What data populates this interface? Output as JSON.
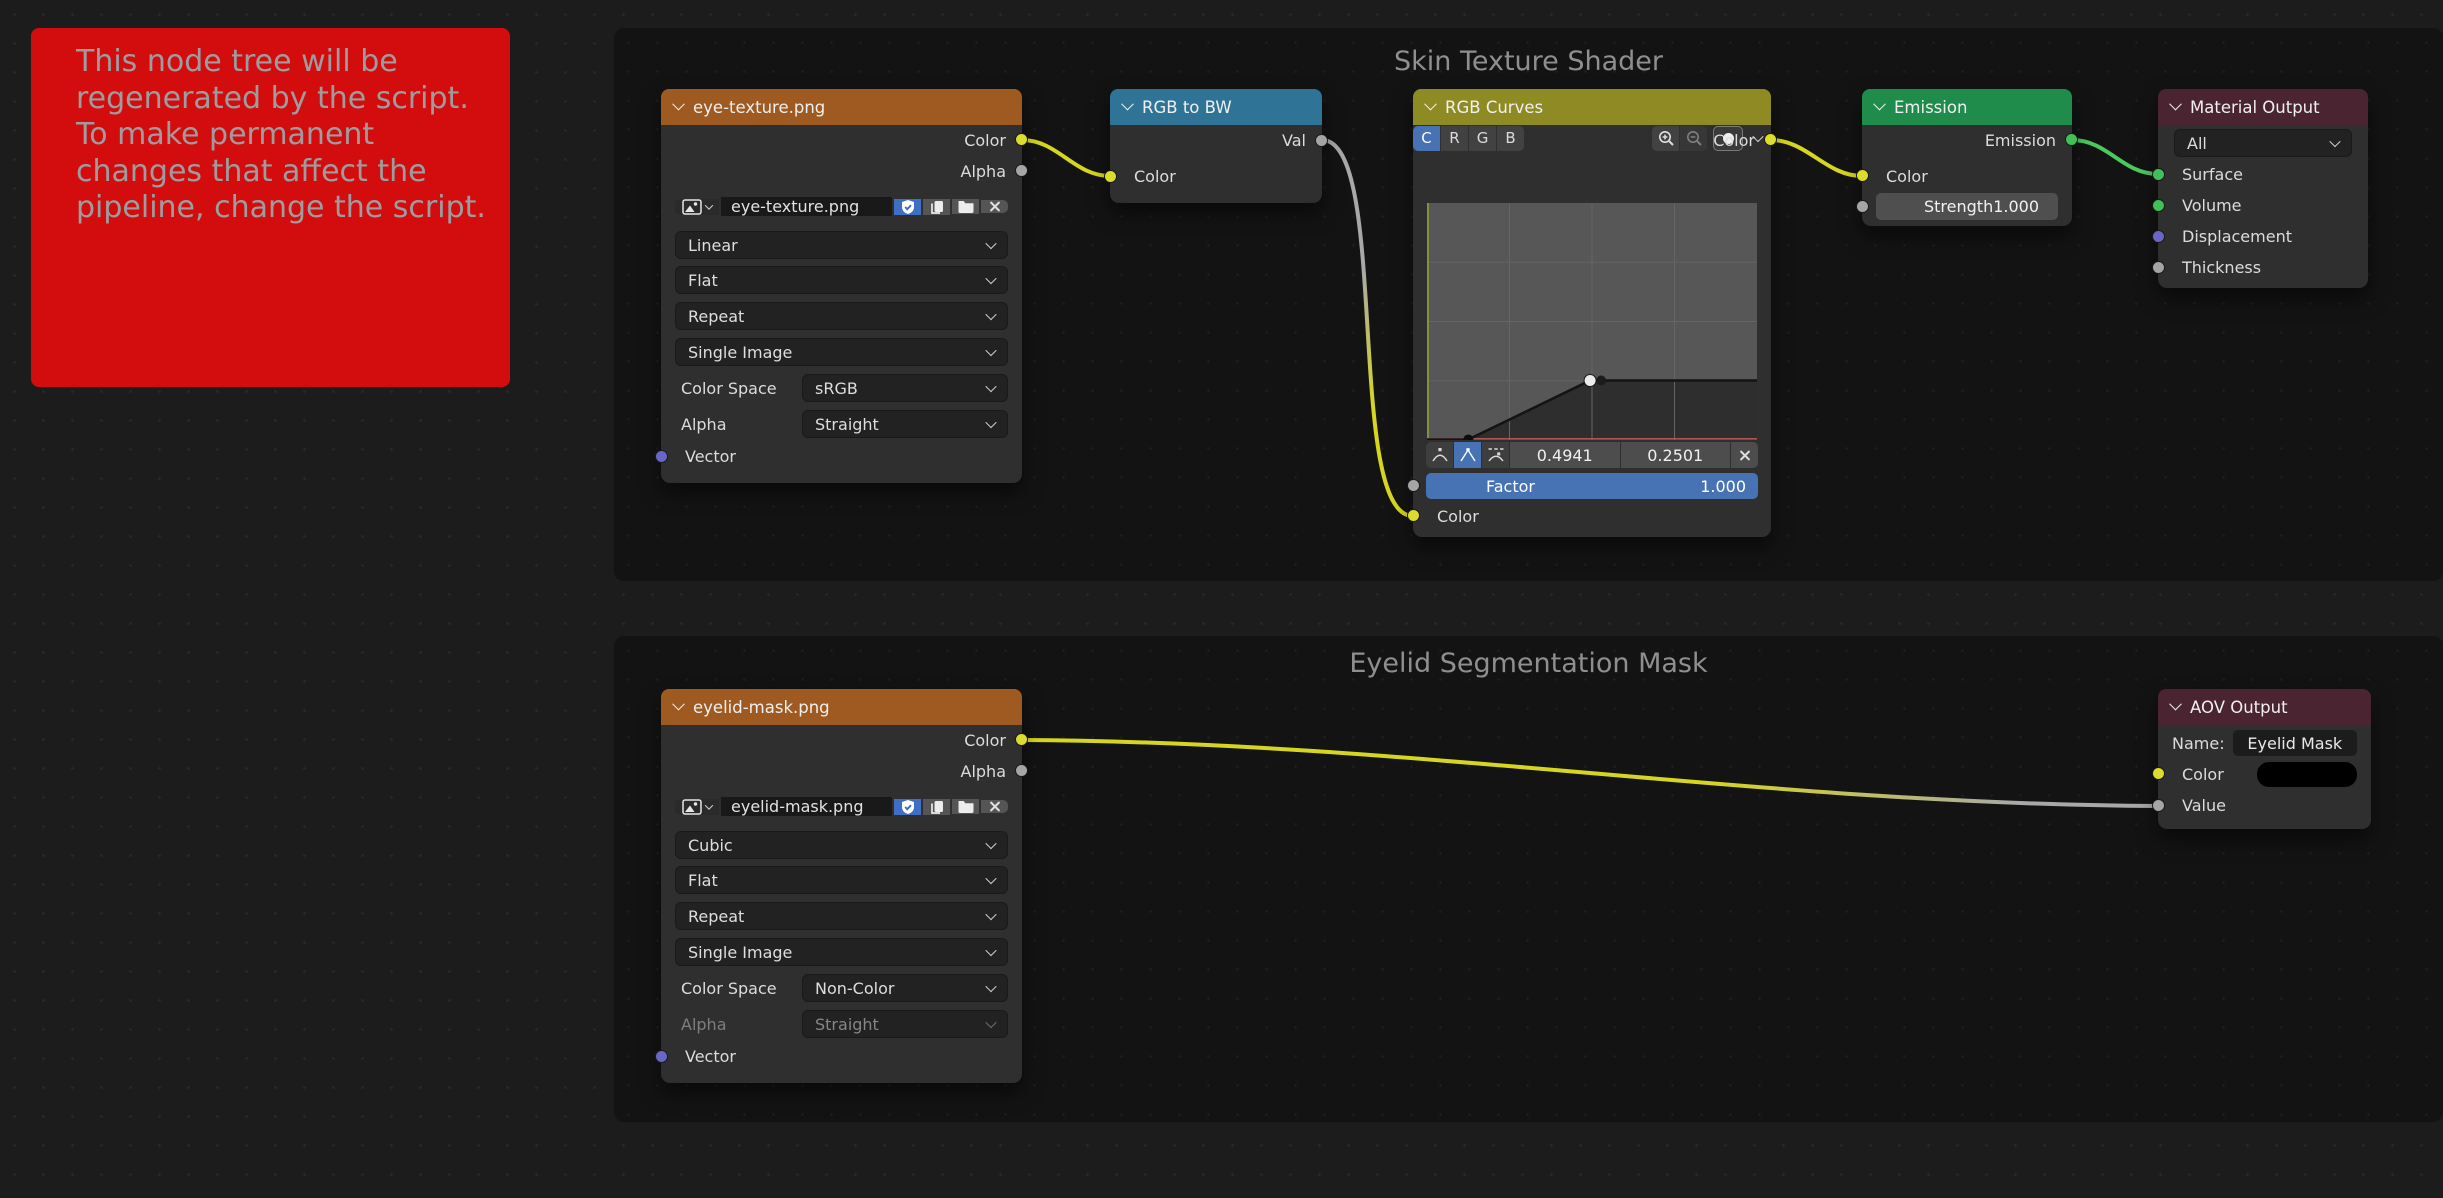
{
  "notice": {
    "lines": [
      "This node tree will be",
      "regenerated by the script.",
      "To make permanent",
      "changes that affect the",
      "pipeline, change the script."
    ]
  },
  "sections": {
    "skin": {
      "title": "Skin Texture Shader"
    },
    "eyelid": {
      "title": "Eyelid Segmentation Mask"
    }
  },
  "colors": {
    "notice_red": "#d30d0d",
    "header_texture": "#9e5a20",
    "header_converter": "#2f7396",
    "header_color_op": "#8f8b24",
    "header_shader": "#1f8c4c",
    "header_output": "#4a2531",
    "socket_color": "#dcdc2c",
    "socket_value": "#a5a5a5",
    "socket_shader": "#3fc157",
    "socket_vector": "#6a66c8",
    "selection_blue": "#4772b3"
  },
  "nodes": {
    "eye_texture": {
      "title": "eye-texture.png",
      "color_out": "Color",
      "alpha_out": "Alpha",
      "image_name": "eye-texture.png",
      "interpolation": "Linear",
      "projection": "Flat",
      "extension": "Repeat",
      "source": "Single Image",
      "color_space_label": "Color Space",
      "color_space": "sRGB",
      "alpha_label": "Alpha",
      "alpha_mode": "Straight",
      "vector_in": "Vector"
    },
    "rgb_to_bw": {
      "title": "RGB to BW",
      "val_out": "Val",
      "color_in": "Color"
    },
    "rgb_curves": {
      "title": "RGB Curves",
      "color_out": "Color",
      "channels": [
        "C",
        "R",
        "G",
        "B"
      ],
      "active_channel": "C",
      "x_value": "0.4941",
      "y_value": "0.2501",
      "factor_label": "Factor",
      "factor_value": "1.000",
      "color_in": "Color",
      "curve_points": [
        [
          0.125,
          0.0
        ],
        [
          0.4941,
          0.2501
        ],
        [
          1.0,
          0.2501
        ]
      ]
    },
    "emission": {
      "title": "Emission",
      "emission_out": "Emission",
      "color_in": "Color",
      "strength_label": "Strength",
      "strength_value": "1.000"
    },
    "material_output": {
      "title": "Material Output",
      "target": "All",
      "inputs": [
        "Surface",
        "Volume",
        "Displacement",
        "Thickness"
      ]
    },
    "eyelid_mask": {
      "title": "eyelid-mask.png",
      "color_out": "Color",
      "alpha_out": "Alpha",
      "image_name": "eyelid-mask.png",
      "interpolation": "Cubic",
      "projection": "Flat",
      "extension": "Repeat",
      "source": "Single Image",
      "color_space_label": "Color Space",
      "color_space": "Non-Color",
      "alpha_label": "Alpha",
      "alpha_mode": "Straight",
      "vector_in": "Vector"
    },
    "aov_output": {
      "title": "AOV Output",
      "name_label": "Name:",
      "name_value": "Eyelid Mask",
      "color_in": "Color",
      "value_in": "Value"
    }
  }
}
